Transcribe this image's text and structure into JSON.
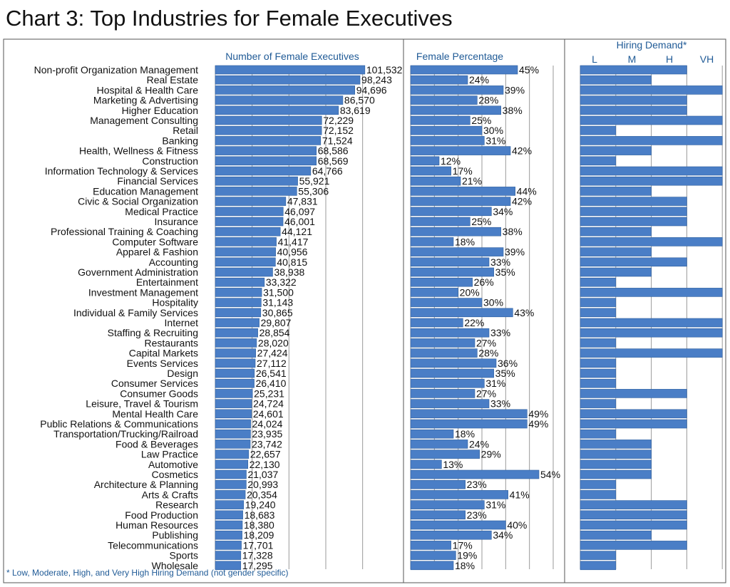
{
  "title": "Chart 3: Top Industries for Female Executives",
  "colors": {
    "bar": "#4a7ec6",
    "bar_stroke": "#2d5f9e",
    "header_text": "#1f5a96",
    "grid": "#9a9a9a",
    "frame": "#555555"
  },
  "chart_data": [
    {
      "type": "bar",
      "orientation": "horizontal",
      "panel_title": "Number of Female Executives",
      "xlim": [
        0,
        120000
      ],
      "grid": true,
      "categories": [
        "Non-profit Organization Management",
        "Real Estate",
        "Hospital & Health Care",
        "Marketing & Advertising",
        "Higher Education",
        "Management Consulting",
        "Retail",
        "Banking",
        "Health, Wellness & Fitness",
        "Construction",
        "Information Technology & Services",
        "Financial Services",
        "Education Management",
        "Civic & Social Organization",
        "Medical Practice",
        "Insurance",
        "Professional Training & Coaching",
        "Computer Software",
        "Apparel & Fashion",
        "Accounting",
        "Government Administration",
        "Entertainment",
        "Investment Management",
        "Hospitality",
        "Individual & Family Services",
        "Internet",
        "Staffing & Recruiting",
        "Restaurants",
        "Capital Markets",
        "Events Services",
        "Design",
        "Consumer Services",
        "Consumer Goods",
        "Leisure, Travel & Tourism",
        "Mental Health Care",
        "Public Relations & Communications",
        "Transportation/Trucking/Railroad",
        "Food & Beverages",
        "Law Practice",
        "Automotive",
        "Cosmetics",
        "Architecture & Planning",
        "Arts & Crafts",
        "Research",
        "Food Production",
        "Human Resources",
        "Publishing",
        "Telecommunications",
        "Sports",
        "Wholesale"
      ],
      "values": [
        101532,
        98243,
        94696,
        86570,
        83619,
        72229,
        72152,
        71524,
        68586,
        68569,
        64766,
        55921,
        55306,
        47831,
        46097,
        46001,
        44121,
        41417,
        40956,
        40815,
        38938,
        33322,
        31500,
        31143,
        30865,
        29807,
        28854,
        28020,
        27424,
        27112,
        26541,
        26410,
        25231,
        24724,
        24601,
        24024,
        23935,
        23742,
        22657,
        22130,
        21037,
        20993,
        20354,
        19240,
        18683,
        18380,
        18209,
        17701,
        17328,
        17295
      ],
      "labels": [
        "101,532",
        "98,243",
        "94,696",
        "86,570",
        "83,619",
        "72,229",
        "72,152",
        "71,524",
        "68,586",
        "68,569",
        "64,766",
        "55,921",
        "55,306",
        "47,831",
        "46,097",
        "46,001",
        "44,121",
        "41,417",
        "40,956",
        "40,815",
        "38,938",
        "33,322",
        "31,500",
        "31,143",
        "30,865",
        "29,807",
        "28,854",
        "28,020",
        "27,424",
        "27,112",
        "26,541",
        "26,410",
        "25,231",
        "24,724",
        "24,601",
        "24,024",
        "23,935",
        "23,742",
        "22,657",
        "22,130",
        "21,037",
        "20,993",
        "20,354",
        "19,240",
        "18,683",
        "18,380",
        "18,209",
        "17,701",
        "17,328",
        "17,295"
      ]
    },
    {
      "type": "bar",
      "orientation": "horizontal",
      "panel_title": "Female Percentage",
      "xlim": [
        0,
        60
      ],
      "grid": true,
      "values": [
        45,
        24,
        39,
        28,
        38,
        25,
        30,
        31,
        42,
        12,
        17,
        21,
        44,
        42,
        34,
        25,
        38,
        18,
        39,
        33,
        35,
        26,
        20,
        30,
        43,
        22,
        33,
        27,
        28,
        36,
        35,
        31,
        27,
        33,
        49,
        49,
        18,
        24,
        29,
        13,
        54,
        23,
        41,
        31,
        23,
        40,
        34,
        17,
        19,
        18
      ],
      "labels": [
        "45%",
        "24%",
        "39%",
        "28%",
        "38%",
        "25%",
        "30%",
        "31%",
        "42%",
        "12%",
        "17%",
        "21%",
        "44%",
        "42%",
        "34%",
        "25%",
        "38%",
        "18%",
        "39%",
        "33%",
        "35%",
        "26%",
        "20%",
        "30%",
        "43%",
        "22%",
        "33%",
        "27%",
        "28%",
        "36%",
        "35%",
        "31%",
        "27%",
        "33%",
        "49%",
        "49%",
        "18%",
        "24%",
        "29%",
        "13%",
        "54%",
        "23%",
        "41%",
        "31%",
        "23%",
        "40%",
        "34%",
        "17%",
        "19%",
        "18%"
      ]
    },
    {
      "type": "bar",
      "orientation": "horizontal",
      "panel_title": "Hiring Demand*",
      "levels": [
        "L",
        "M",
        "H",
        "VH"
      ],
      "grid": true,
      "values": [
        3,
        2,
        4,
        3,
        3,
        4,
        1,
        4,
        2,
        1,
        4,
        4,
        2,
        3,
        3,
        3,
        2,
        4,
        2,
        3,
        2,
        1,
        4,
        1,
        1,
        4,
        4,
        1,
        4,
        1,
        1,
        1,
        3,
        1,
        3,
        3,
        1,
        2,
        2,
        2,
        2,
        1,
        1,
        3,
        3,
        3,
        2,
        3,
        1,
        1
      ]
    }
  ],
  "footnote": "* Low, Moderate, High, and Very High Hiring Demand (not gender specific)"
}
